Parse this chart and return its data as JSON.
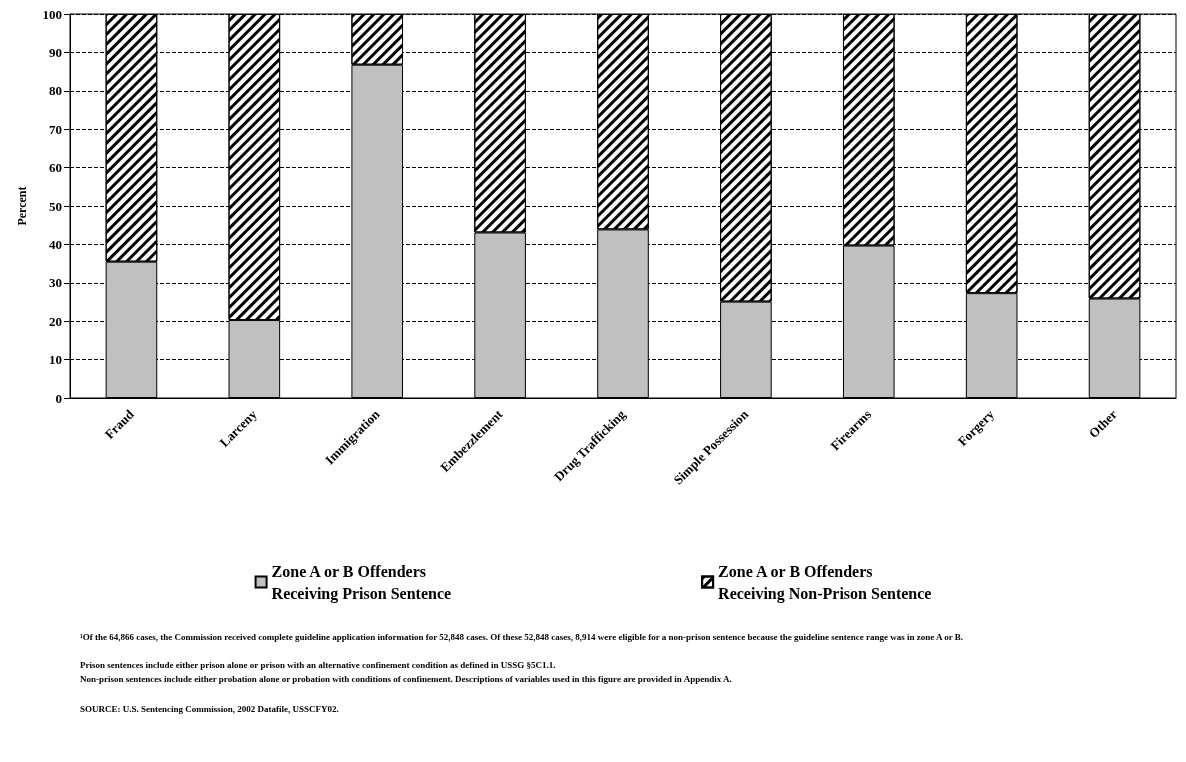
{
  "chart_data": {
    "type": "bar",
    "ylabel": "Percent",
    "stacked": true,
    "grid": "y",
    "legend": "bottom",
    "categories": [
      "Fraud",
      "Larceny",
      "Immigration",
      "Embezzlement",
      "Drug Trafficking",
      "Simple Possession",
      "Firearms",
      "Forgery",
      "Other"
    ],
    "series": [
      {
        "name": "Zone A or B Offenders\nReceiving Prison Sentence",
        "color": "#c0c0c0",
        "values": [
          35.5,
          20.3,
          86.8,
          43.1,
          43.9,
          25.1,
          39.7,
          27.3,
          25.9
        ]
      },
      {
        "name": "Zone A or B Offenders\nReceiving Non-Prison Sentence",
        "color": "#ffffff",
        "values": [
          64.5,
          79.7,
          13.2,
          56.9,
          56.1,
          74.9,
          60.3,
          72.7,
          74.1
        ]
      }
    ],
    "ylim": [
      0,
      100
    ],
    "yticks": [
      0,
      10,
      20,
      30,
      40,
      50,
      60,
      70,
      80,
      90,
      100
    ],
    "annotations": [
      "¹Of the 64,866 cases, the Commission received complete guideline application information for 52,848 cases. Of these 52,848 cases, 8,914 were eligible for a non-prison sentence because the guideline sentence range was in zone A or B.",
      "Prison sentences include either prison alone or prison with an alternative confinement condition as defined in USSG §5C1.1.",
      "Non-prison sentences include either probation alone or probation with conditions of confinement. Descriptions of variables used in this figure are provided in Appendix A.",
      "SOURCE: U.S. Sentencing Commission, 2002 Datafile, USSCFY02."
    ]
  }
}
